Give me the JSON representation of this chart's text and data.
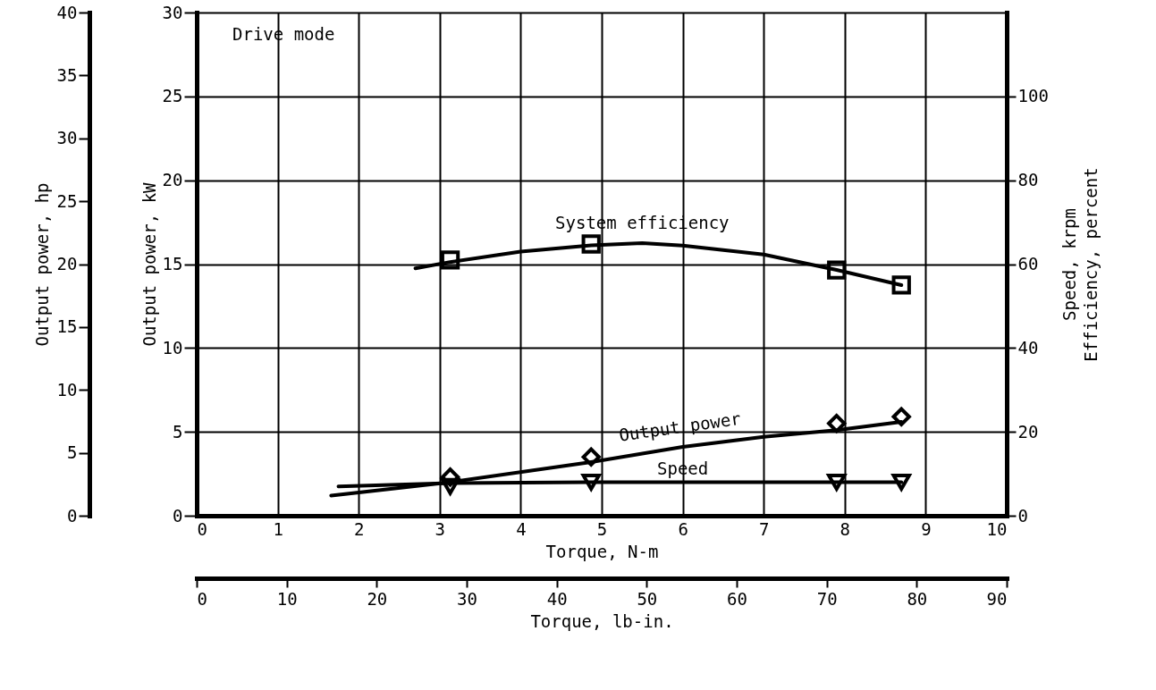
{
  "chart_data": {
    "type": "line",
    "xlabel": "Torque, N-m",
    "ylabel": "Output power, kW",
    "y2label": "Speed, krpm\nEfficiency, percent",
    "y3label": "Output power, hp",
    "x2label": "Torque, lb-in.",
    "xlim": [
      0,
      10
    ],
    "xticks": [
      0,
      1,
      2,
      3,
      4,
      5,
      6,
      7,
      8,
      9,
      10
    ],
    "ylim": [
      0,
      30
    ],
    "yticks": [
      0,
      5,
      10,
      15,
      20,
      25,
      30
    ],
    "y2lim": [
      0,
      120
    ],
    "y2ticks": [
      0,
      20,
      40,
      60,
      80,
      100
    ],
    "y3lim": [
      0,
      40
    ],
    "y3ticks": [
      0,
      5,
      10,
      15,
      20,
      25,
      30,
      35,
      40
    ],
    "x2lim": [
      0,
      90
    ],
    "x2ticks": [
      0,
      10,
      20,
      30,
      40,
      50,
      60,
      70,
      80,
      90
    ],
    "grid": true,
    "line_style": "solid",
    "annotations": [
      "Drive mode"
    ],
    "series": [
      {
        "name": "System efficiency",
        "axis": "y2",
        "color": "#000000",
        "x": [
          2.7,
          3.13,
          4,
          4.87,
          5.5,
          6,
          7,
          7.9,
          8.7
        ],
        "values": [
          59,
          60.5,
          63,
          64.5,
          65,
          64.4,
          62.3,
          58.6,
          55
        ]
      },
      {
        "type": "scatter",
        "axis": "y2",
        "marker": "square",
        "color": "#000000",
        "x": [
          3.13,
          4.87,
          7.9,
          8.7
        ],
        "values": [
          61,
          64.8,
          58.6,
          55
        ]
      },
      {
        "name": "Output power",
        "color": "#000000",
        "x": [
          1.66,
          3.13,
          4.87,
          6,
          7,
          7.9,
          8.7
        ],
        "values": [
          1.2,
          2.0,
          3.2,
          4.1,
          4.7,
          5.1,
          5.6
        ]
      },
      {
        "type": "scatter",
        "marker": "diamond",
        "color": "#000000",
        "x": [
          3.13,
          4.87,
          7.9,
          8.7
        ],
        "values": [
          2.3,
          3.5,
          5.5,
          5.9
        ]
      },
      {
        "name": "Speed",
        "axis": "y2",
        "color": "#000000",
        "x": [
          1.75,
          3.13,
          4.87,
          6,
          7.9,
          8.7
        ],
        "values": [
          7,
          7.8,
          8,
          8,
          8,
          8
        ]
      },
      {
        "type": "scatter",
        "axis": "y2",
        "marker": "triangle",
        "color": "#000000",
        "x": [
          3.13,
          4.87,
          7.9,
          8.7
        ],
        "values": [
          7,
          8,
          8,
          8
        ]
      }
    ]
  }
}
